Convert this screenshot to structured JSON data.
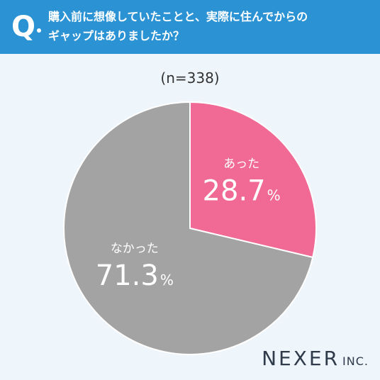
{
  "header": {
    "q_mark": "Q",
    "question_line1": "購入前に想像していたことと、実際に住んでからの",
    "question_line2": "ギャップはありましたか？"
  },
  "sample_note": "(n=338)",
  "colors": {
    "header_bg": "#2b93d4",
    "yes": "#f06a95",
    "no": "#a3a3a3",
    "background": "#eef5fb"
  },
  "chart_data": {
    "type": "pie",
    "categories": [
      "あった",
      "なかった"
    ],
    "values": [
      28.7,
      71.3
    ],
    "value_labels": [
      "28.7",
      "71.3"
    ],
    "unit": "%",
    "start": "12 o'clock",
    "direction": "clockwise"
  },
  "logo": {
    "main": "NEXER",
    "sub": "INC."
  }
}
